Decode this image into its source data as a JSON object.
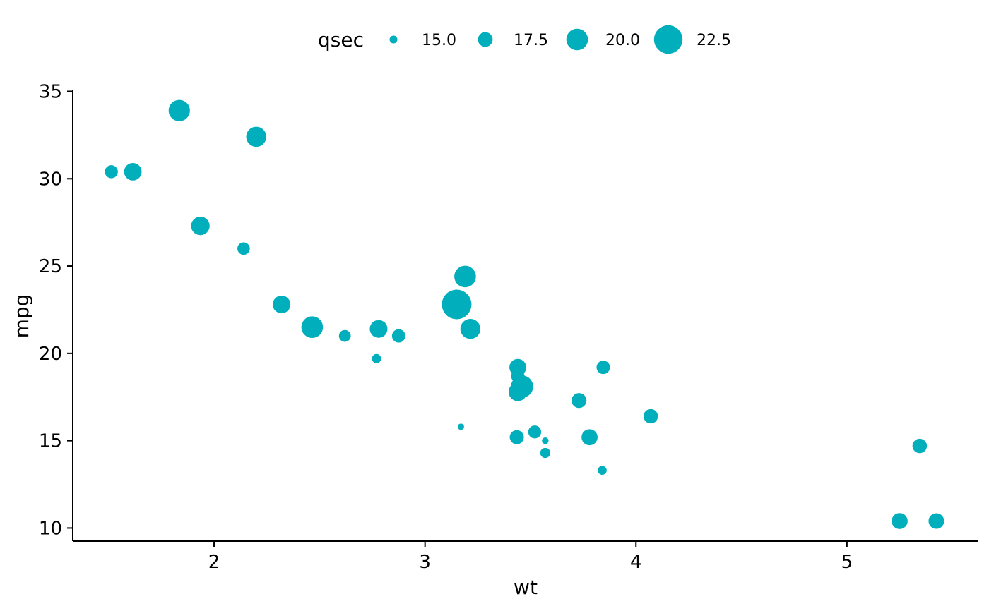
{
  "chart_data": {
    "type": "scatter",
    "xlabel": "wt",
    "ylabel": "mpg",
    "xlim": [
      1.33,
      5.62
    ],
    "ylim": [
      9.25,
      35.1
    ],
    "x_ticks": [
      2,
      3,
      4,
      5
    ],
    "y_ticks": [
      10,
      15,
      20,
      25,
      30,
      35
    ],
    "point_color": "#00AFBB",
    "grid": false,
    "legend": {
      "title": "qsec",
      "placement": "top",
      "entries": [
        {
          "label": "15.0",
          "value": 15.0
        },
        {
          "label": "17.5",
          "value": 17.5
        },
        {
          "label": "20.0",
          "value": 20.0
        },
        {
          "label": "22.5",
          "value": 22.5
        }
      ]
    },
    "size_range": [
      14.5,
      22.9
    ],
    "points": [
      {
        "x": 2.62,
        "y": 21.0,
        "size": 16.46
      },
      {
        "x": 2.875,
        "y": 21.0,
        "size": 17.02
      },
      {
        "x": 2.32,
        "y": 22.8,
        "size": 18.61
      },
      {
        "x": 3.215,
        "y": 21.4,
        "size": 19.44
      },
      {
        "x": 3.44,
        "y": 18.7,
        "size": 17.02
      },
      {
        "x": 3.46,
        "y": 18.1,
        "size": 20.22
      },
      {
        "x": 3.57,
        "y": 14.3,
        "size": 15.84
      },
      {
        "x": 3.19,
        "y": 24.4,
        "size": 20.0
      },
      {
        "x": 3.15,
        "y": 22.8,
        "size": 22.9
      },
      {
        "x": 3.44,
        "y": 19.2,
        "size": 18.3
      },
      {
        "x": 3.44,
        "y": 17.8,
        "size": 18.9
      },
      {
        "x": 4.07,
        "y": 16.4,
        "size": 17.4
      },
      {
        "x": 3.73,
        "y": 17.3,
        "size": 17.6
      },
      {
        "x": 3.78,
        "y": 15.2,
        "size": 18.0
      },
      {
        "x": 5.25,
        "y": 10.4,
        "size": 17.98
      },
      {
        "x": 5.424,
        "y": 10.4,
        "size": 17.82
      },
      {
        "x": 5.345,
        "y": 14.7,
        "size": 17.42
      },
      {
        "x": 2.2,
        "y": 32.4,
        "size": 19.47
      },
      {
        "x": 1.615,
        "y": 30.4,
        "size": 18.52
      },
      {
        "x": 1.835,
        "y": 33.9,
        "size": 19.9
      },
      {
        "x": 2.465,
        "y": 21.5,
        "size": 20.01
      },
      {
        "x": 3.52,
        "y": 15.5,
        "size": 16.87
      },
      {
        "x": 3.435,
        "y": 15.2,
        "size": 17.3
      },
      {
        "x": 3.84,
        "y": 13.3,
        "size": 15.41
      },
      {
        "x": 3.845,
        "y": 19.2,
        "size": 17.05
      },
      {
        "x": 1.935,
        "y": 27.3,
        "size": 18.9
      },
      {
        "x": 2.14,
        "y": 26.0,
        "size": 16.7
      },
      {
        "x": 1.513,
        "y": 30.4,
        "size": 16.9
      },
      {
        "x": 3.17,
        "y": 15.8,
        "size": 14.5
      },
      {
        "x": 2.77,
        "y": 19.7,
        "size": 15.5
      },
      {
        "x": 3.57,
        "y": 15.0,
        "size": 14.6
      },
      {
        "x": 2.78,
        "y": 21.4,
        "size": 18.6
      }
    ]
  }
}
